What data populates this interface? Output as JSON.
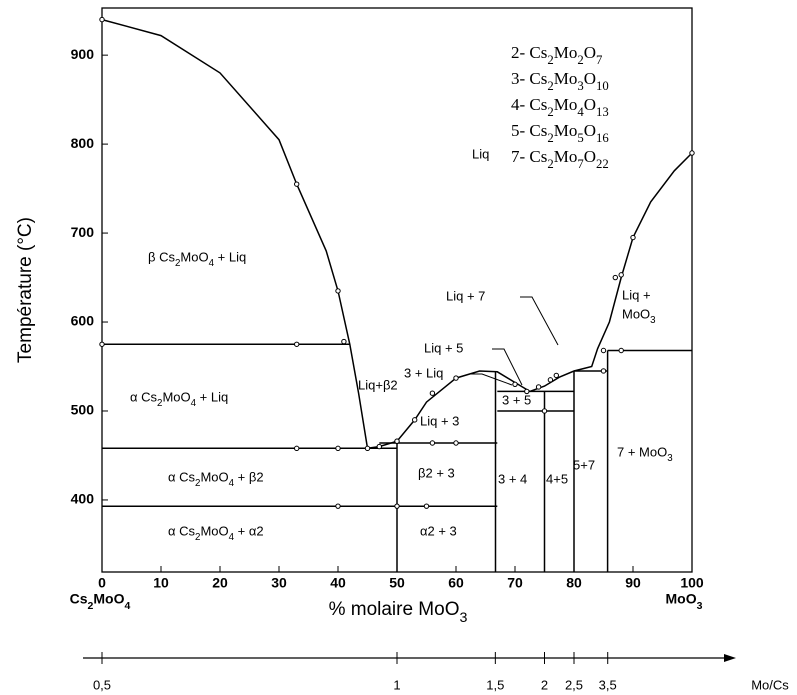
{
  "chart_data": {
    "type": "phase-diagram",
    "x_label": "% molaire MoO3",
    "y_label": "Température (°C)",
    "xlim": [
      0,
      100
    ],
    "ylim": [
      319,
      953
    ],
    "xticks": [
      0,
      10,
      20,
      30,
      40,
      50,
      60,
      70,
      80,
      90,
      100
    ],
    "yticks": [
      400,
      500,
      600,
      700,
      800,
      900
    ],
    "grid": false,
    "color": "#000000",
    "x_end_labels": [
      "Cs2MoO4",
      "MoO3"
    ],
    "series": [
      {
        "x": [
          0,
          10,
          20,
          30,
          33,
          38,
          40,
          42,
          43.5,
          45
        ],
        "values": [
          940,
          922,
          880,
          805,
          755,
          680,
          635,
          575,
          520,
          458
        ]
      },
      {
        "x": [
          45,
          47,
          50,
          53,
          55,
          60,
          64,
          67,
          70,
          72.5
        ],
        "values": [
          458,
          460,
          466,
          490,
          510,
          537,
          545,
          544,
          532,
          522
        ]
      },
      {
        "x": [
          72.5,
          75,
          77.5,
          80,
          83,
          84,
          86,
          88,
          90,
          93,
          97,
          100
        ],
        "values": [
          522,
          528,
          538,
          545,
          550,
          570,
          600,
          650,
          695,
          735,
          770,
          790
        ]
      },
      {
        "x": [
          0,
          42
        ],
        "values": [
          575,
          575
        ]
      },
      {
        "x": [
          0,
          50
        ],
        "values": [
          458,
          458
        ]
      },
      {
        "x": [
          47,
          67
        ],
        "values": [
          464,
          464
        ]
      },
      {
        "x": [
          0,
          67
        ],
        "values": [
          393,
          393
        ]
      },
      {
        "x": [
          67,
          80
        ],
        "values": [
          522,
          522
        ]
      },
      {
        "x": [
          67,
          80
        ],
        "values": [
          500,
          500
        ]
      },
      {
        "x": [
          80,
          85.7
        ],
        "values": [
          545,
          545
        ]
      },
      {
        "x": [
          85.7,
          100
        ],
        "values": [
          568,
          568
        ]
      },
      {
        "x": [
          50,
          50
        ],
        "values": [
          319,
          466
        ]
      },
      {
        "x": [
          66.7,
          66.7
        ],
        "values": [
          319,
          545
        ]
      },
      {
        "x": [
          75,
          75
        ],
        "values": [
          319,
          522
        ]
      },
      {
        "x": [
          80,
          80
        ],
        "values": [
          319,
          545
        ]
      },
      {
        "x": [
          85.7,
          85.7
        ],
        "values": [
          319,
          568
        ]
      }
    ],
    "points": {
      "x": [
        0,
        33,
        40,
        41,
        45,
        47,
        50,
        53,
        56,
        60,
        70,
        72,
        74,
        76,
        77,
        85,
        87,
        88,
        90,
        100,
        33,
        0,
        33,
        40,
        50,
        56,
        60,
        40,
        50,
        55,
        75,
        85,
        88
      ],
      "values": [
        940,
        755,
        635,
        578,
        458,
        460,
        466,
        490,
        520,
        537,
        530,
        522,
        527,
        535,
        540,
        545,
        650,
        653,
        695,
        790,
        575,
        575,
        458,
        458,
        466,
        464,
        464,
        393,
        393,
        393,
        500,
        568,
        568
      ]
    },
    "legend_texts": [
      "2- Cs2Mo2O7",
      "3- Cs2Mo3O10",
      "4- Cs2Mo4O13",
      "5- Cs2Mo5O16",
      "7- Cs2Mo7O22"
    ],
    "annotations": [
      "Liq",
      "β Cs2MoO4 + Liq",
      "α Cs2MoO4 + Liq",
      "α Cs2MoO4 + β2",
      "α Cs2MoO4 + α2",
      "Liq+β2",
      "Liq + 3",
      "β2 + 3",
      "α2 + 3",
      "3 + Liq",
      "Liq + 5",
      "Liq + 7",
      "3 + 5",
      "3 + 4",
      "4+5",
      "5+7",
      "7 + MoO3",
      "Liq +",
      "MoO3"
    ],
    "ratio_axis": {
      "label": "Mo/Cs",
      "ticks": [
        {
          "value": 0.5,
          "label": "0,5"
        },
        {
          "value": 1,
          "label": "1"
        },
        {
          "value": 1.5,
          "label": "1,5"
        },
        {
          "value": 2,
          "label": "2"
        },
        {
          "value": 2.5,
          "label": "2,5"
        },
        {
          "value": 3.5,
          "label": "3,5"
        }
      ]
    }
  }
}
